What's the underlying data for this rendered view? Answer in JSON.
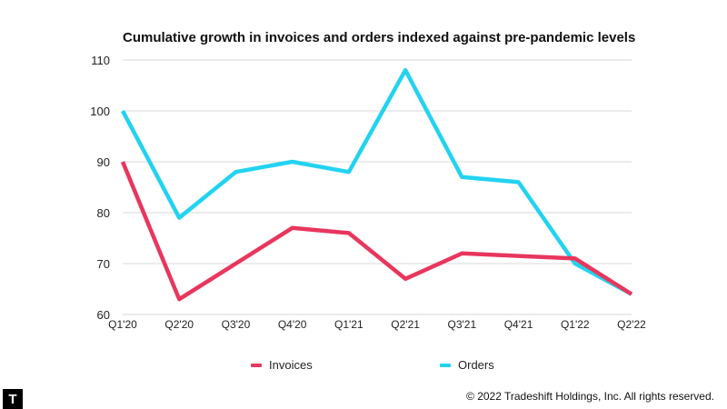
{
  "chart_data": {
    "type": "line",
    "title": "Cumulative growth in invoices and orders indexed against pre-pandemic levels",
    "categories": [
      "Q1'20",
      "Q2'20",
      "Q3'20",
      "Q4'20",
      "Q1'21",
      "Q2'21",
      "Q3'21",
      "Q4'21",
      "Q1'22",
      "Q2'22"
    ],
    "yticks": [
      60,
      70,
      80,
      90,
      100,
      110
    ],
    "ylim": [
      60,
      110
    ],
    "xlabel": "",
    "ylabel": "",
    "grid": true,
    "legend_position": "bottom",
    "series": [
      {
        "name": "Invoices",
        "color": "#e8365d",
        "values": [
          90,
          63,
          70,
          77,
          76,
          67,
          72,
          71.5,
          71,
          64
        ]
      },
      {
        "name": "Orders",
        "color": "#22d3f0",
        "values": [
          100,
          79,
          88,
          90,
          88,
          108,
          87,
          86,
          70,
          64
        ]
      }
    ]
  },
  "legend": {
    "invoices_label": "Invoices",
    "orders_label": "Orders"
  },
  "footer": {
    "logo_letter": "T",
    "copyright": "© 2022 Tradeshift Holdings, Inc. All rights reserved."
  }
}
